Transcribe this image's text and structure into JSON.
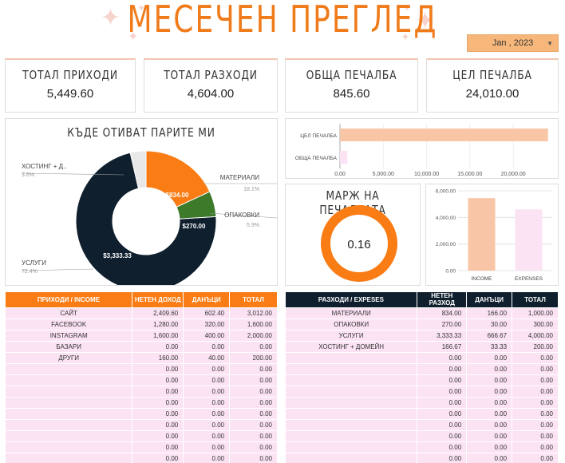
{
  "header": {
    "title": "МЕСЕЧЕН ПРЕГЛЕД",
    "date_value": "Jan , 2023"
  },
  "kpis": [
    {
      "label": "ТОТАЛ ПРИХОДИ",
      "value": "5,449.60"
    },
    {
      "label": "ТОТАЛ РАЗХОДИ",
      "value": "4,604.00"
    },
    {
      "label": "ОБЩА ПЕЧАЛБА",
      "value": "845.60"
    },
    {
      "label": "ЦЕЛ ПЕЧАЛБА",
      "value": "24,010.00"
    }
  ],
  "donut": {
    "title": "КЪДЕ ОТИВАТ ПАРИТЕ МИ",
    "labels": {
      "hosting": {
        "name": "ХОСТИНГ + Д..",
        "pct": "3.6%"
      },
      "materials": {
        "name": "МАТЕРИАЛИ",
        "pct": "18.1%"
      },
      "packaging": {
        "name": "ОПАКОВКИ",
        "pct": "5.9%"
      },
      "services": {
        "name": "УСЛУГИ",
        "pct": "72.4%"
      }
    },
    "slice_labels": {
      "materials": "$834.00",
      "packaging": "$270.00",
      "services": "$3,333.33"
    }
  },
  "margin": {
    "title": "МАРЖ НА ПЕЧАЛБАТА",
    "value": "0.16"
  },
  "colors": {
    "orange": "#f97c14",
    "navy": "#0f1f2e",
    "green": "#3d7a2a",
    "peach": "#f8c5a6",
    "pink": "#fbe3f3",
    "light_gray": "#e8e8e8"
  },
  "chart_data": [
    {
      "type": "pie",
      "title": "КЪДЕ ОТИВАТ ПАРИТЕ МИ",
      "categories": [
        "МАТЕРИАЛИ",
        "ОПАКОВКИ",
        "УСЛУГИ",
        "ХОСТИНГ + Д.."
      ],
      "values": [
        834.0,
        270.0,
        3333.33,
        166.67
      ],
      "percentages": [
        "18.1%",
        "5.9%",
        "72.4%",
        "3.6%"
      ],
      "colors": [
        "#f97c14",
        "#3d7a2a",
        "#0f1f2e",
        "#e8e8e8"
      ]
    },
    {
      "type": "bar",
      "orientation": "horizontal",
      "categories": [
        "ЦЕЛ ПЕЧАЛБА",
        "ОБЩА ПЕЧАЛБА"
      ],
      "values": [
        24010.0,
        845.6
      ],
      "colors": [
        "#f8c5a6",
        "#fbe3f3"
      ],
      "xlim": [
        0,
        24500
      ],
      "xticks": [
        "0.00",
        "5,000.00",
        "10,000.00",
        "15,000.00",
        "20,000.00"
      ],
      "xtick_values": [
        0,
        5000,
        10000,
        15000,
        20000
      ]
    },
    {
      "type": "pie",
      "title": "МАРЖ НА ПЕЧАЛБАТА",
      "values": [
        0.16
      ],
      "colors": [
        "#f97c14"
      ]
    },
    {
      "type": "bar",
      "categories": [
        "INCOME",
        "EXPENSES"
      ],
      "values": [
        5449.6,
        4604.0
      ],
      "colors": [
        "#f8c5a6",
        "#fbe3f3"
      ],
      "ylim": [
        0,
        6000
      ],
      "yticks": [
        "0.00",
        "2,000.00",
        "4,000.00",
        "6,000.00"
      ],
      "ytick_values": [
        0,
        2000,
        4000,
        6000
      ]
    }
  ],
  "income_table": {
    "headers": [
      "ПРИХОДИ / INCOME",
      "НЕТЕН ДОХОД",
      "ДАНЪЦИ",
      "ТОТАЛ"
    ],
    "rows": [
      [
        "САЙТ",
        "2,409.60",
        "602.40",
        "3,012.00"
      ],
      [
        "FACEBOOK",
        "1,280.00",
        "320.00",
        "1,600.00"
      ],
      [
        "INSTAGRAM",
        "1,600.00",
        "400.00",
        "2,000.00"
      ],
      [
        "БАЗАРИ",
        "0.00",
        "0.00",
        "0.00"
      ],
      [
        "ДРУГИ",
        "160.00",
        "40.00",
        "200.00"
      ],
      [
        "",
        "0.00",
        "0.00",
        "0.00"
      ],
      [
        "",
        "0.00",
        "0.00",
        "0.00"
      ],
      [
        "",
        "0.00",
        "0.00",
        "0.00"
      ],
      [
        "",
        "0.00",
        "0.00",
        "0.00"
      ],
      [
        "",
        "0.00",
        "0.00",
        "0.00"
      ],
      [
        "",
        "0.00",
        "0.00",
        "0.00"
      ],
      [
        "",
        "0.00",
        "0.00",
        "0.00"
      ],
      [
        "",
        "0.00",
        "0.00",
        "0.00"
      ],
      [
        "",
        "0.00",
        "0.00",
        "0.00"
      ]
    ]
  },
  "expense_table": {
    "headers": [
      "РАЗХОДИ / EXPESES",
      "НЕТЕН РАЗХОД",
      "ДАНЪЦИ",
      "ТОТАЛ"
    ],
    "rows": [
      [
        "МАТЕРИАЛИ",
        "834.00",
        "166.00",
        "1,000.00"
      ],
      [
        "ОПАКОВКИ",
        "270.00",
        "30.00",
        "300.00"
      ],
      [
        "УСЛУГИ",
        "3,333.33",
        "666.67",
        "4,000.00"
      ],
      [
        "ХОСТИНГ + ДОМЕЙН",
        "166.67",
        "33.33",
        "200.00"
      ],
      [
        "",
        "0.00",
        "0.00",
        "0.00"
      ],
      [
        "",
        "0.00",
        "0.00",
        "0.00"
      ],
      [
        "",
        "0.00",
        "0.00",
        "0.00"
      ],
      [
        "",
        "0.00",
        "0.00",
        "0.00"
      ],
      [
        "",
        "0.00",
        "0.00",
        "0.00"
      ],
      [
        "",
        "0.00",
        "0.00",
        "0.00"
      ],
      [
        "",
        "0.00",
        "0.00",
        "0.00"
      ],
      [
        "",
        "0.00",
        "0.00",
        "0.00"
      ],
      [
        "",
        "0.00",
        "0.00",
        "0.00"
      ],
      [
        "",
        "0.00",
        "0.00",
        "0.00"
      ]
    ]
  }
}
